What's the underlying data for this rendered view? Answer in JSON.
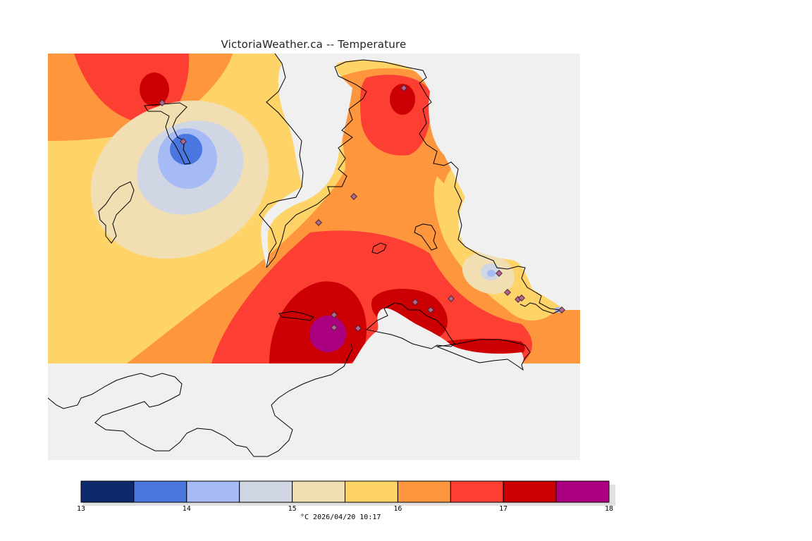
{
  "title": "VictoriaWeather.ca -- Temperature",
  "legend": {
    "unit_and_time": "°C  2026/04/20 10:17",
    "ticks": [
      "13",
      "14",
      "15",
      "16",
      "17",
      "18"
    ],
    "bins": [
      {
        "range": "13-13.5",
        "color": "#0d2a6b"
      },
      {
        "range": "13.5-14",
        "color": "#4a76df"
      },
      {
        "range": "14-14.5",
        "color": "#a6baf6"
      },
      {
        "range": "14.5-15",
        "color": "#d0d6e3"
      },
      {
        "range": "15-15.5",
        "color": "#f1dfb3"
      },
      {
        "range": "15.5-16",
        "color": "#fed469"
      },
      {
        "range": "16-16.5",
        "color": "#fd963d"
      },
      {
        "range": "16.5-17",
        "color": "#fc3e33"
      },
      {
        "range": "17-17.5",
        "color": "#cc0002"
      },
      {
        "range": "17.5-18",
        "color": "#ab0080"
      }
    ]
  },
  "colors": {
    "land_mask": "#f0f0f0",
    "coast": "#000000",
    "station_marker": "#b06890"
  }
}
